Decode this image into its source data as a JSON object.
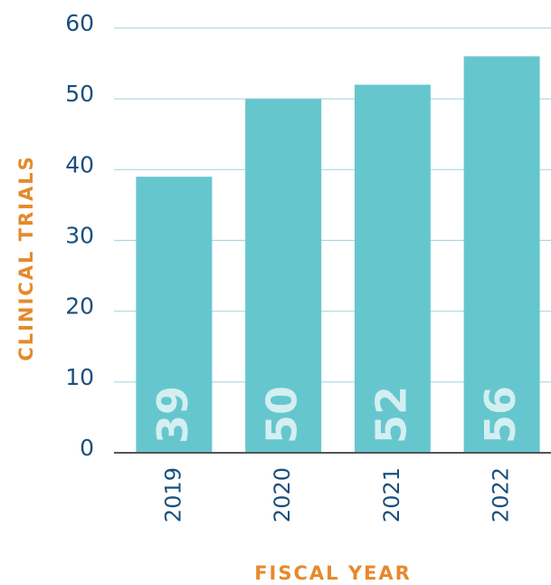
{
  "chart_data": {
    "type": "bar",
    "x_label": "FISCAL YEAR",
    "y_label": "CLINICAL TRIALS",
    "categories": [
      "2019",
      "2020",
      "2021",
      "2022"
    ],
    "values": [
      39,
      50,
      52,
      56
    ],
    "color": "#66c6ce",
    "ylim": [
      0,
      60
    ],
    "yticks": [
      0,
      10,
      20,
      30,
      40,
      50,
      60
    ],
    "grid": true
  }
}
